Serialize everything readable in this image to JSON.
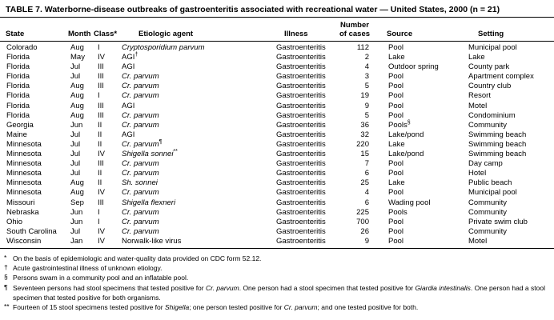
{
  "title": "TABLE 7. Waterborne-disease outbreaks of gastroenteritis associated with recreational water — United States, 2000 (n = 21)",
  "colors": {
    "text": "#000000",
    "background": "#ffffff",
    "rule": "#000000"
  },
  "table": {
    "header": {
      "state": "State",
      "month": "Month",
      "class": "Class*",
      "agent": "Etiologic agent",
      "illness": "Illness",
      "cases_line1": "Number",
      "cases_line2": "of cases",
      "source": "Source",
      "setting": "Setting"
    },
    "rows": [
      {
        "state": "Colorado",
        "month": "Aug",
        "class": "I",
        "agent": {
          "text": "Cryptosporidium parvum",
          "italic": true,
          "sup": ""
        },
        "illness": "Gastroenteritis",
        "cases": "112",
        "source": {
          "text": "Pool",
          "sup": ""
        },
        "setting": "Municipal pool"
      },
      {
        "state": "Florida",
        "month": "May",
        "class": "IV",
        "agent": {
          "text": "AGI",
          "italic": false,
          "sup": "†"
        },
        "illness": "Gastroenteritis",
        "cases": "2",
        "source": {
          "text": "Lake",
          "sup": ""
        },
        "setting": "Lake"
      },
      {
        "state": "Florida",
        "month": "Jul",
        "class": "III",
        "agent": {
          "text": "AGI",
          "italic": false,
          "sup": ""
        },
        "illness": "Gastroenteritis",
        "cases": "4",
        "source": {
          "text": "Outdoor spring",
          "sup": ""
        },
        "setting": "County park"
      },
      {
        "state": "Florida",
        "month": "Jul",
        "class": "III",
        "agent": {
          "text": "Cr. parvum",
          "italic": true,
          "sup": ""
        },
        "illness": "Gastroenteritis",
        "cases": "3",
        "source": {
          "text": "Pool",
          "sup": ""
        },
        "setting": "Apartment complex"
      },
      {
        "state": "Florida",
        "month": "Aug",
        "class": "III",
        "agent": {
          "text": "Cr. parvum",
          "italic": true,
          "sup": ""
        },
        "illness": "Gastroenteritis",
        "cases": "5",
        "source": {
          "text": "Pool",
          "sup": ""
        },
        "setting": "Country club"
      },
      {
        "state": "Florida",
        "month": "Aug",
        "class": "I",
        "agent": {
          "text": "Cr. parvum",
          "italic": true,
          "sup": ""
        },
        "illness": "Gastroenteritis",
        "cases": "19",
        "source": {
          "text": "Pool",
          "sup": ""
        },
        "setting": "Resort"
      },
      {
        "state": "Florida",
        "month": "Aug",
        "class": "III",
        "agent": {
          "text": "AGI",
          "italic": false,
          "sup": ""
        },
        "illness": "Gastroenteritis",
        "cases": "9",
        "source": {
          "text": "Pool",
          "sup": ""
        },
        "setting": "Motel"
      },
      {
        "state": "Florida",
        "month": "Aug",
        "class": "III",
        "agent": {
          "text": "Cr. parvum",
          "italic": true,
          "sup": ""
        },
        "illness": "Gastroenteritis",
        "cases": "5",
        "source": {
          "text": "Pool",
          "sup": ""
        },
        "setting": "Condominium"
      },
      {
        "state": "Georgia",
        "month": "Jun",
        "class": "II",
        "agent": {
          "text": "Cr. parvum",
          "italic": true,
          "sup": ""
        },
        "illness": "Gastroenteritis",
        "cases": "36",
        "source": {
          "text": "Pools",
          "sup": "§"
        },
        "setting": "Community"
      },
      {
        "state": "Maine",
        "month": "Jul",
        "class": "II",
        "agent": {
          "text": "AGI",
          "italic": false,
          "sup": ""
        },
        "illness": "Gastroenteritis",
        "cases": "32",
        "source": {
          "text": "Lake/pond",
          "sup": ""
        },
        "setting": "Swimming beach"
      },
      {
        "state": "Minnesota",
        "month": "Jul",
        "class": "II",
        "agent": {
          "text": "Cr. parvum",
          "italic": true,
          "sup": "¶"
        },
        "illness": "Gastroenteritis",
        "cases": "220",
        "source": {
          "text": "Lake",
          "sup": ""
        },
        "setting": "Swimming beach"
      },
      {
        "state": "Minnesota",
        "month": "Jul",
        "class": "IV",
        "agent": {
          "text": "Shigella sonnei",
          "italic": true,
          "sup": "**"
        },
        "illness": "Gastroenteritis",
        "cases": "15",
        "source": {
          "text": "Lake/pond",
          "sup": ""
        },
        "setting": "Swimming beach"
      },
      {
        "state": "Minnesota",
        "month": "Jul",
        "class": "III",
        "agent": {
          "text": "Cr. parvum",
          "italic": true,
          "sup": ""
        },
        "illness": "Gastroenteritis",
        "cases": "7",
        "source": {
          "text": "Pool",
          "sup": ""
        },
        "setting": "Day camp"
      },
      {
        "state": "Minnesota",
        "month": "Jul",
        "class": "II",
        "agent": {
          "text": "Cr. parvum",
          "italic": true,
          "sup": ""
        },
        "illness": "Gastroenteritis",
        "cases": "6",
        "source": {
          "text": "Pool",
          "sup": ""
        },
        "setting": "Hotel"
      },
      {
        "state": "Minnesota",
        "month": "Aug",
        "class": "II",
        "agent": {
          "text": "Sh. sonnei",
          "italic": true,
          "sup": ""
        },
        "illness": "Gastroenteritis",
        "cases": "25",
        "source": {
          "text": "Lake",
          "sup": ""
        },
        "setting": "Public beach"
      },
      {
        "state": "Minnesota",
        "month": "Aug",
        "class": "IV",
        "agent": {
          "text": "Cr. parvum",
          "italic": true,
          "sup": ""
        },
        "illness": "Gastroenteritis",
        "cases": "4",
        "source": {
          "text": "Pool",
          "sup": ""
        },
        "setting": "Municipal pool"
      },
      {
        "state": "Missouri",
        "month": "Sep",
        "class": "III",
        "agent": {
          "text": "Shigella flexneri",
          "italic": true,
          "sup": ""
        },
        "illness": "Gastroenteritis",
        "cases": "6",
        "source": {
          "text": "Wading pool",
          "sup": ""
        },
        "setting": "Community"
      },
      {
        "state": "Nebraska",
        "month": "Jun",
        "class": "I",
        "agent": {
          "text": "Cr. parvum",
          "italic": true,
          "sup": ""
        },
        "illness": "Gastroenteritis",
        "cases": "225",
        "source": {
          "text": "Pools",
          "sup": ""
        },
        "setting": "Community"
      },
      {
        "state": "Ohio",
        "month": "Jun",
        "class": "I",
        "agent": {
          "text": "Cr. parvum",
          "italic": true,
          "sup": ""
        },
        "illness": "Gastroenteritis",
        "cases": "700",
        "source": {
          "text": "Pool",
          "sup": ""
        },
        "setting": "Private swim club"
      },
      {
        "state": "South Carolina",
        "month": "Jul",
        "class": "IV",
        "agent": {
          "text": "Cr. parvum",
          "italic": true,
          "sup": ""
        },
        "illness": "Gastroenteritis",
        "cases": "26",
        "source": {
          "text": "Pool",
          "sup": ""
        },
        "setting": "Community"
      },
      {
        "state": "Wisconsin",
        "month": "Jan",
        "class": "IV",
        "agent": {
          "text": "Norwalk-like virus",
          "italic": false,
          "sup": ""
        },
        "illness": "Gastroenteritis",
        "cases": "9",
        "source": {
          "text": "Pool",
          "sup": ""
        },
        "setting": "Motel"
      }
    ]
  },
  "footnotes": [
    {
      "marker": "*",
      "segments": [
        {
          "text": "On the basis of epidemiologic and water-quality data provided on CDC form 52.12.",
          "italic": false
        }
      ]
    },
    {
      "marker": "†",
      "segments": [
        {
          "text": "Acute gastrointestinal illness of unknown etiology.",
          "italic": false
        }
      ]
    },
    {
      "marker": "§",
      "segments": [
        {
          "text": "Persons swam in a community pool and an inflatable pool.",
          "italic": false
        }
      ]
    },
    {
      "marker": "¶",
      "segments": [
        {
          "text": "Seventeen persons had stool specimens that tested positive for ",
          "italic": false
        },
        {
          "text": "Cr. parvum",
          "italic": true
        },
        {
          "text": ". One person had a stool specimen that tested positive for ",
          "italic": false
        },
        {
          "text": "Giardia intestinalis",
          "italic": true
        },
        {
          "text": ". One person had a stool specimen that tested positive for both organisms.",
          "italic": false
        }
      ]
    },
    {
      "marker": "**",
      "segments": [
        {
          "text": "Fourteen of 15 stool specimens tested positive for ",
          "italic": false
        },
        {
          "text": "Shigella",
          "italic": true
        },
        {
          "text": "; one person tested positive for ",
          "italic": false
        },
        {
          "text": "Cr. parvum",
          "italic": true
        },
        {
          "text": "; and one tested positive for both.",
          "italic": false
        }
      ]
    }
  ]
}
